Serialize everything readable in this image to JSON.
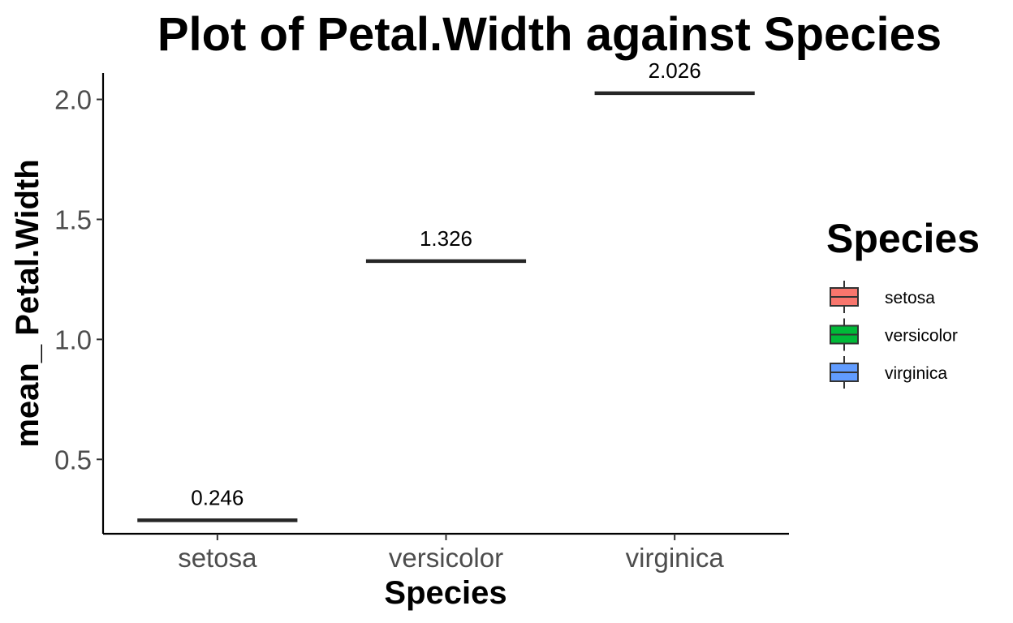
{
  "colors": {
    "setosa": "#F8766D",
    "versicolor": "#00BA38",
    "virginica": "#619CFF",
    "line": "#262626",
    "tick_text": "#4d4d4d"
  },
  "chart_data": {
    "type": "bar",
    "title": "Plot of  Petal.Width against  Species",
    "xlabel": "Species",
    "ylabel": "mean_ Petal.Width",
    "categories": [
      "setosa",
      "versicolor",
      "virginica"
    ],
    "values": [
      0.246,
      1.326,
      2.026
    ],
    "data_labels": [
      "0.246",
      "1.326",
      "2.026"
    ],
    "y_ticks": [
      0.5,
      1.0,
      1.5,
      2.0
    ],
    "y_tick_labels": [
      "0.5",
      "1.0",
      "1.5",
      "2.0"
    ],
    "ylim": [
      0.19,
      2.11
    ],
    "grid": false,
    "legend": {
      "title": "Species",
      "position": "right",
      "entries": [
        "setosa",
        "versicolor",
        "virginica"
      ]
    }
  }
}
